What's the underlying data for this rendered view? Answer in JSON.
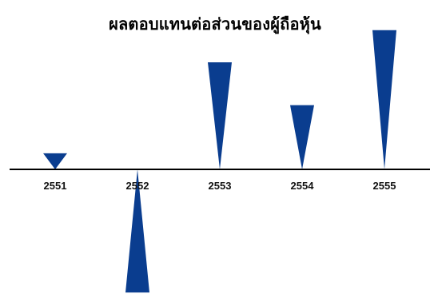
{
  "chart_data": {
    "type": "bar",
    "title": "ผลตอบแทนต่อส่วนของผู้ถือหุ้น",
    "categories": [
      "2551",
      "2552",
      "2553",
      "2554",
      "2555"
    ],
    "values": [
      3,
      -23,
      20,
      12,
      26
    ],
    "ylim": [
      -23,
      26
    ],
    "bar_shape": "tapered-triangle",
    "bar_color": "#0a3d8f",
    "axis_color": "#000000",
    "grid": false,
    "legend": "none"
  }
}
